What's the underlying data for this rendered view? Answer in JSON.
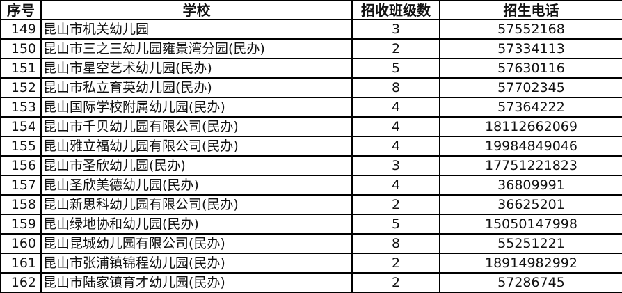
{
  "headers": [
    "序号",
    "学校",
    "招收班级数",
    "招生电话"
  ],
  "rows": [
    {
      "no": "149",
      "school": "昆山市机关幼儿园",
      "classes": "3",
      "phone": "57552168"
    },
    {
      "no": "150",
      "school": "昆山市三之三幼儿园雍景湾分园(民办)",
      "classes": "2",
      "phone": "57334113"
    },
    {
      "no": "151",
      "school": "昆山市星空艺术幼儿园(民办)",
      "classes": "5",
      "phone": "57630116"
    },
    {
      "no": "152",
      "school": "昆山市私立育英幼儿园(民办)",
      "classes": "8",
      "phone": "57702345"
    },
    {
      "no": "153",
      "school": "昆山国际学校附属幼儿园(民办)",
      "classes": "4",
      "phone": "57364222"
    },
    {
      "no": "154",
      "school": "昆山市千贝幼儿园有限公司(民办)",
      "classes": "4",
      "phone": "18112662069"
    },
    {
      "no": "155",
      "school": "昆山雅立福幼儿园有限公司(民办)",
      "classes": "4",
      "phone": "19984849046"
    },
    {
      "no": "156",
      "school": "昆山市圣欣幼儿园(民办)",
      "classes": "3",
      "phone": "17751221823"
    },
    {
      "no": "157",
      "school": "昆山圣欣美德幼儿园(民办)",
      "classes": "4",
      "phone": "36809991"
    },
    {
      "no": "158",
      "school": "昆山新思科幼儿园有限公司(民办)",
      "classes": "2",
      "phone": "36625201"
    },
    {
      "no": "159",
      "school": "昆山绿地协和幼儿园(民办)",
      "classes": "5",
      "phone": "15050147998"
    },
    {
      "no": "160",
      "school": "昆山昆城幼儿园有限公司(民办)",
      "classes": "8",
      "phone": "55251221"
    },
    {
      "no": "161",
      "school": "昆山市张浦镇锦程幼儿园(民办)",
      "classes": "2",
      "phone": "18914982992"
    },
    {
      "no": "162",
      "school": "昆山市陆家镇育才幼儿园(民办)",
      "classes": "2",
      "phone": "57286745"
    }
  ]
}
